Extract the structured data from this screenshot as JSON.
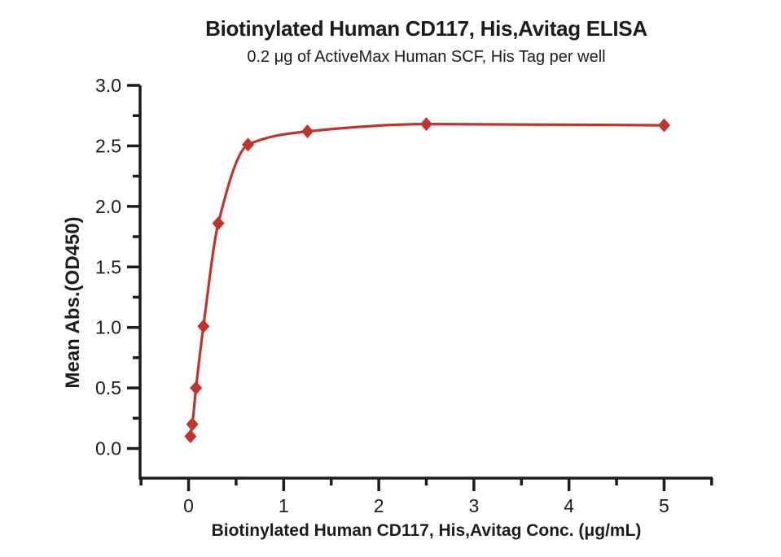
{
  "chart_data": {
    "type": "scatter",
    "title": "Biotinylated Human CD117, His,Avitag ELISA",
    "subtitle": "0.2 μg of ActiveMax Human SCF, His Tag per well",
    "xlabel": "Biotinylated Human CD117, His,Avitag Conc. (μg/mL)",
    "ylabel": "Mean Abs.(OD450)",
    "series": [
      {
        "name": "Biotinylated Human CD117, His,Avitag",
        "x": [
          0.0195,
          0.0391,
          0.0781,
          0.1563,
          0.3125,
          0.625,
          1.25,
          2.5,
          5
        ],
        "y": [
          0.1,
          0.2,
          0.5,
          1.01,
          1.86,
          2.51,
          2.62,
          2.68,
          2.67
        ],
        "marker": "diamond",
        "curve": "4PL-sigmoidal-fit"
      }
    ],
    "xlim": [
      -0.51,
      5.51
    ],
    "ylim": [
      -0.245,
      3.0
    ],
    "x_major_ticks": [
      0,
      1,
      2,
      3,
      4,
      5
    ],
    "x_tick_labels": [
      "0",
      "1",
      "2",
      "3",
      "4",
      "5"
    ],
    "x_minor_ticks": [
      -0.5,
      0.5,
      1.5,
      2.5,
      3.5,
      4.5,
      5.5
    ],
    "y_major_ticks": [
      0,
      0.5,
      1,
      1.5,
      2,
      2.5,
      3
    ],
    "y_tick_labels": [
      "0.0",
      "0.5",
      "1.0",
      "1.5",
      "2.0",
      "2.5",
      "3.0"
    ],
    "y_minor_ticks": [
      0.25,
      0.75,
      1.25,
      1.75,
      2.25,
      2.75
    ],
    "grid": false,
    "legend": "none",
    "colors": {
      "series": "#c0342e",
      "axis": "#1c1c1c",
      "text": "#1c1c1c"
    }
  }
}
